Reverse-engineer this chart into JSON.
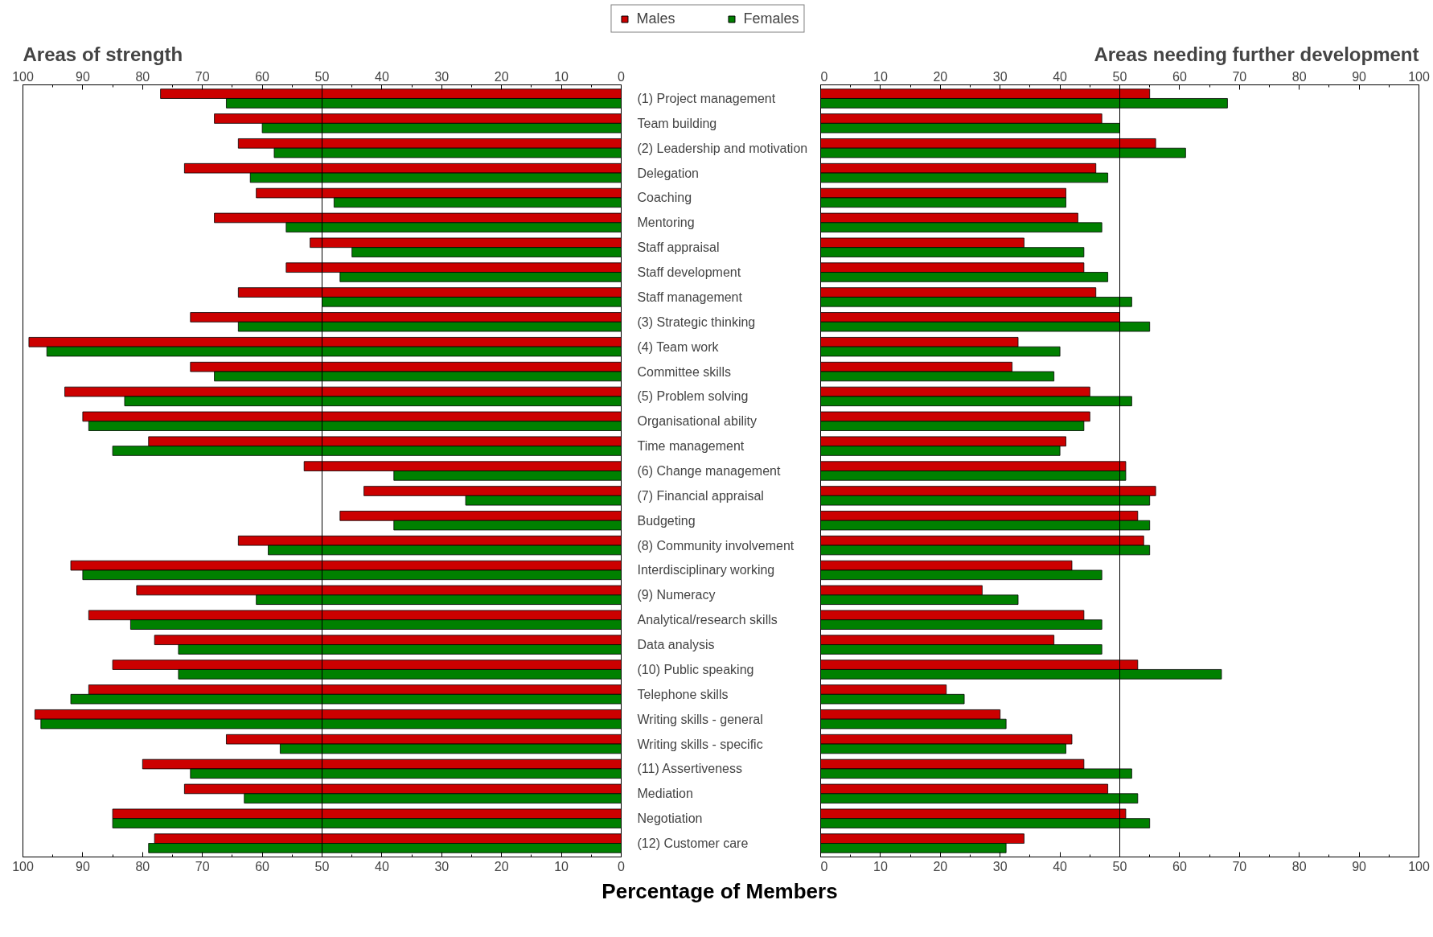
{
  "chart_data": [
    {
      "type": "bar",
      "orientation": "horizontal",
      "title": "Areas of strength",
      "xlabel": "Percentage of Members",
      "legend": "top",
      "categories": [
        "(1) Project management",
        "Team building",
        "(2) Leadership and motivation",
        "Delegation",
        "Coaching",
        "Mentoring",
        "Staff appraisal",
        "Staff development",
        "Staff management",
        "(3) Strategic thinking",
        "(4) Team work",
        "Committee skills",
        "(5) Problem solving",
        "Organisational ability",
        "Time management",
        "(6) Change management",
        "(7) Financial appraisal",
        "Budgeting",
        "(8) Community involvement",
        "Interdisciplinary working",
        "(9) Numeracy",
        "Analytical/research skills",
        "Data analysis",
        "(10) Public speaking",
        "Telephone skills",
        "Writing skills - general",
        "Writing skills - specific",
        "(11) Assertiveness",
        "Mediation",
        "Negotiation",
        "(12) Customer care"
      ],
      "series": [
        {
          "name": "Males",
          "color": "#cc0000",
          "values": [
            77,
            68,
            64,
            73,
            61,
            68,
            52,
            56,
            64,
            72,
            99,
            72,
            93,
            90,
            79,
            53,
            43,
            47,
            64,
            92,
            81,
            89,
            78,
            85,
            89,
            98,
            66,
            80,
            73,
            85,
            78
          ]
        },
        {
          "name": "Females",
          "color": "#008000",
          "values": [
            66,
            60,
            58,
            62,
            48,
            56,
            45,
            47,
            50,
            64,
            96,
            68,
            83,
            89,
            85,
            38,
            26,
            38,
            59,
            90,
            61,
            82,
            74,
            74,
            92,
            97,
            57,
            72,
            63,
            85,
            79
          ]
        }
      ],
      "xlim": [
        100,
        0
      ],
      "xticks": [
        100,
        90,
        80,
        70,
        60,
        50,
        40,
        30,
        20,
        10,
        0
      ],
      "x2lim": [
        100,
        0
      ],
      "x2ticks": [
        100,
        90,
        80,
        70,
        60,
        50,
        40,
        30,
        20,
        10,
        0
      ],
      "ref_lines": [
        {
          "axis": "x",
          "value": 50
        }
      ]
    },
    {
      "type": "bar",
      "orientation": "horizontal",
      "title": "Areas needing further development",
      "tick_labels": "x",
      "categories": [
        null,
        null,
        null,
        null,
        null,
        null,
        null,
        null,
        null,
        null,
        null,
        null,
        null,
        null,
        null,
        null,
        null,
        null,
        null,
        null,
        null,
        null,
        null,
        null,
        null,
        null,
        null,
        null,
        null,
        null,
        null
      ],
      "series": [
        {
          "color": "#cc0000",
          "values": [
            55,
            47,
            56,
            46,
            41,
            43,
            34,
            44,
            46,
            50,
            33,
            32,
            45,
            45,
            41,
            51,
            56,
            53,
            54,
            42,
            27,
            44,
            39,
            53,
            21,
            30,
            42,
            44,
            48,
            51,
            34
          ]
        },
        {
          "color": "#008000",
          "values": [
            68,
            50,
            61,
            48,
            41,
            47,
            44,
            48,
            52,
            55,
            40,
            39,
            52,
            44,
            40,
            51,
            55,
            55,
            55,
            47,
            33,
            47,
            47,
            67,
            24,
            31,
            41,
            52,
            53,
            55,
            31
          ]
        }
      ],
      "xlim": [
        0,
        100
      ],
      "xticks": [
        0,
        10,
        20,
        30,
        40,
        50,
        60,
        70,
        80,
        90,
        100
      ],
      "x2lim": [
        0,
        100
      ],
      "x2ticks": [
        0,
        10,
        20,
        30,
        40,
        50,
        60,
        70,
        80,
        90,
        100
      ],
      "ref_lines": [
        {
          "axis": "x",
          "value": 50
        }
      ]
    }
  ]
}
